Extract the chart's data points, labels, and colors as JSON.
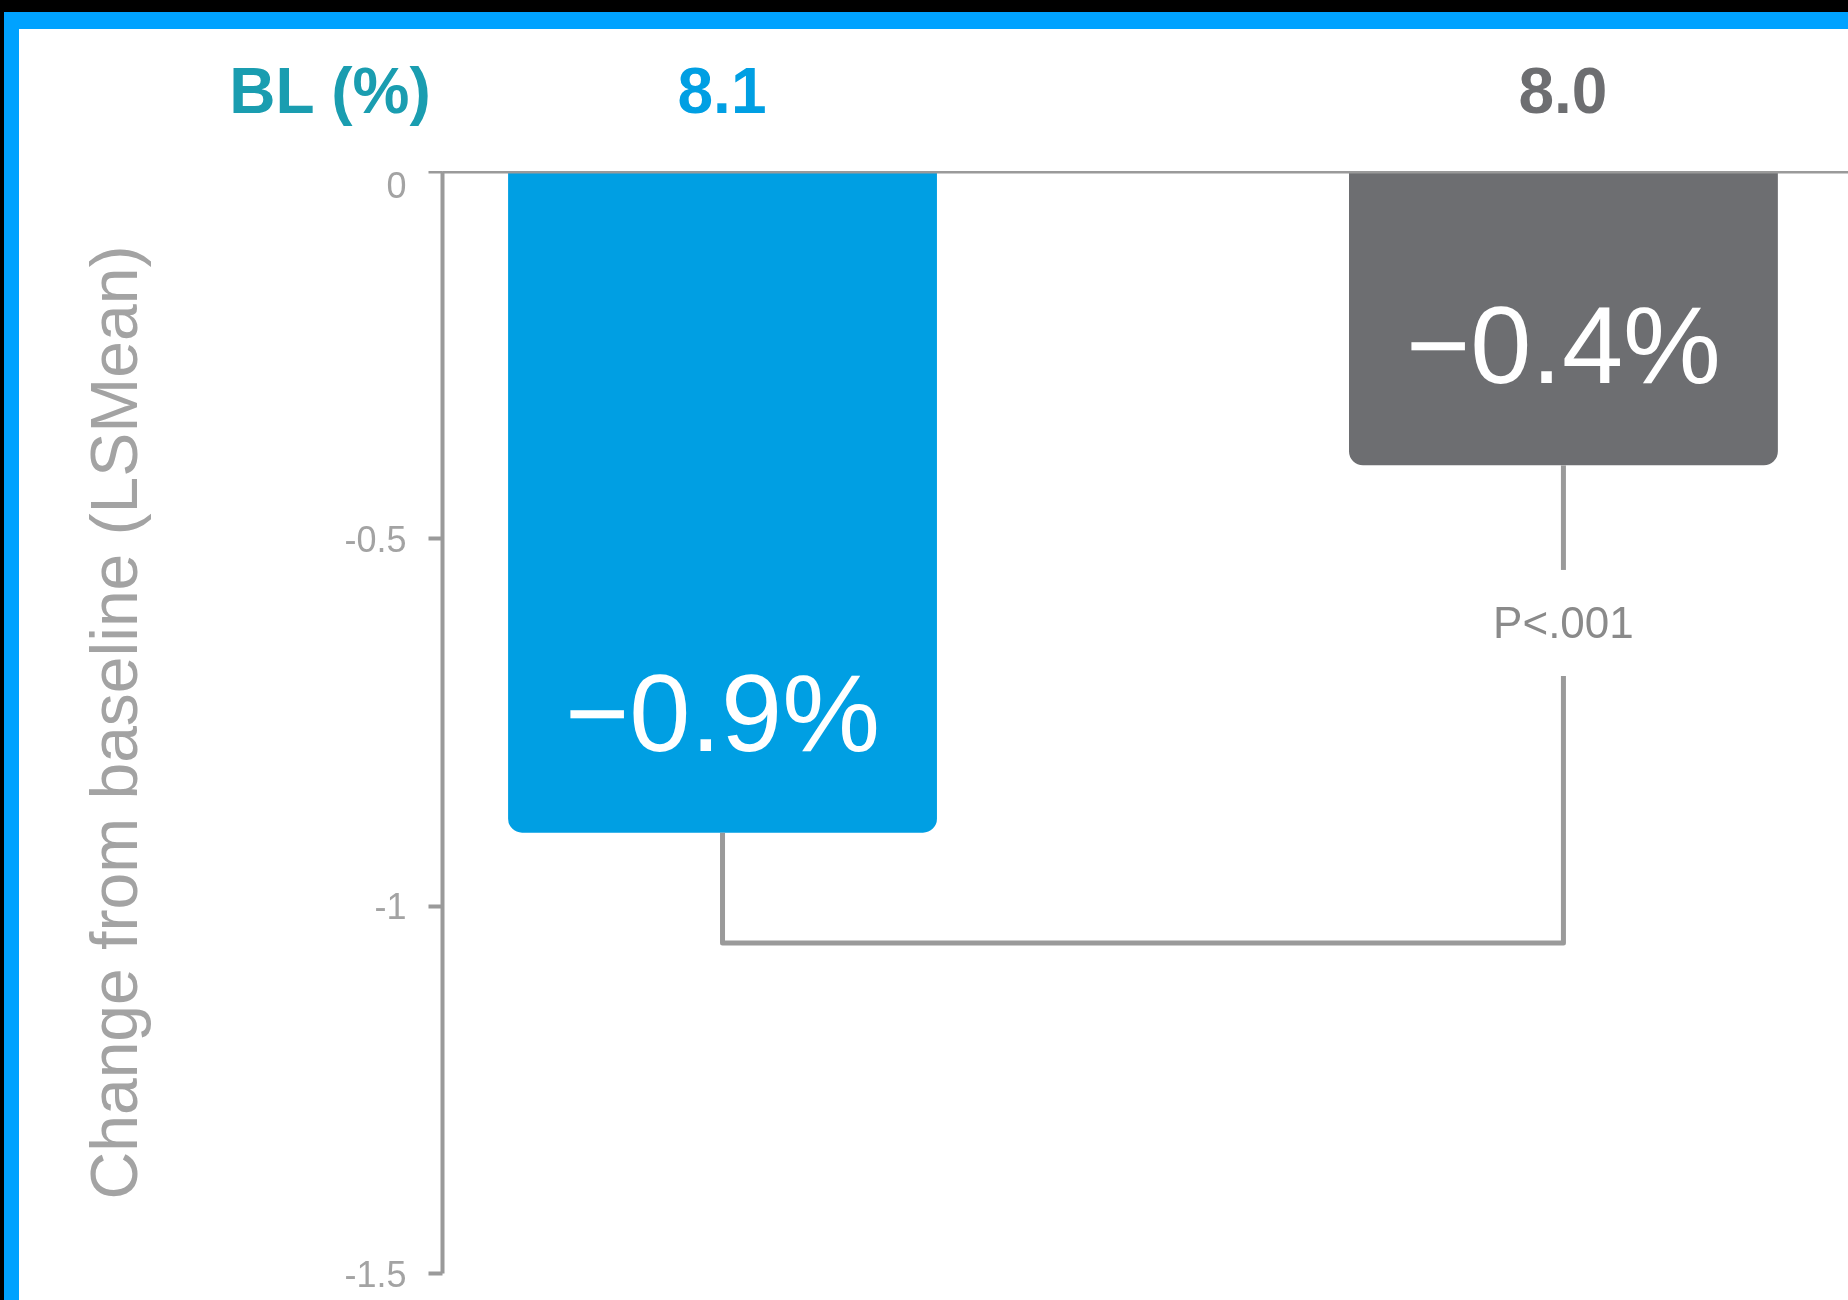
{
  "chart_data": {
    "type": "bar",
    "xlabel": "BL (%)",
    "ylabel": "Change from baseline (LSMean)",
    "categories": [
      "8.1",
      "8.0"
    ],
    "values": [
      -0.9,
      -0.4
    ],
    "colors": [
      "#009fe3",
      "#6d6e71"
    ],
    "value_labels": [
      "−0.9%",
      "−0.4%"
    ],
    "ylim": [
      -1.5,
      0
    ],
    "yticks": [
      0,
      -0.5,
      -1,
      -1.5
    ],
    "grid": false,
    "annotations": [
      {
        "text": "P<.001",
        "x": "8.0",
        "y": -0.4
      }
    ]
  }
}
